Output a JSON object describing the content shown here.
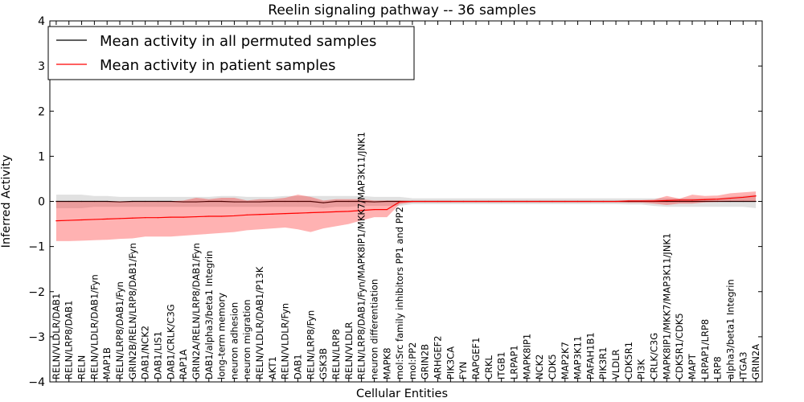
{
  "chart_data": {
    "type": "line",
    "title": "Reelin signaling pathway -- 36 samples",
    "xlabel": "Cellular Entities",
    "ylabel": "Inferred Activity",
    "ylim": [
      -4,
      4
    ],
    "yticks": [
      -4,
      -3,
      -2,
      -1,
      0,
      1,
      2,
      3,
      4
    ],
    "grid": false,
    "legend_position": "top-left",
    "categories": [
      "RELN/VLDLR/DAB1",
      "RELN/LRP8/DAB1",
      "RELN",
      "RELN/VLDLR/DAB1/Fyn",
      "MAP1B",
      "RELN/LRP8/DAB1/Fyn",
      "GRIN2B/RELN/LRP8/DAB1/Fyn",
      "DAB1/NCK2",
      "DAB1/LIS1",
      "DAB1/CRLK/C3G",
      "RAP1A",
      "GRIN2A/RELN/LRP8/DAB1/Fyn",
      "DAB1/alpha3/beta1 Integrin",
      "long-term memory",
      "neuron adhesion",
      "neuron migration",
      "RELN/VLDLR/DAB1/P13K",
      "AKT1",
      "RELN/VLDLR/Fyn",
      "DAB1",
      "RELN/LRP8/Fyn",
      "GSK3B",
      "RELN/LRP8",
      "RELN/VLDLR",
      "RELN/LRP8/DAB1/Fyn/MAPK8IP1/MKK7/MAP3K11/JNK1",
      "neuron differentiation",
      "MAPK8",
      "mol:Src family inhibitors PP1 and PP2",
      "mol:PP2",
      "GRIN2B",
      "ARHGEF2",
      "PIK3CA",
      "FYN",
      "RAPGEF1",
      "CRKL",
      "ITGB1",
      "LRPAP1",
      "MAPK8IP1",
      "NCK2",
      "CDK5",
      "MAP2K7",
      "MAP3K11",
      "PAFAH1B1",
      "PIK3R1",
      "VLDLR",
      "CDK5R1",
      "PI3K",
      "CRLK/C3G",
      "MAPK8IP1/MKK7/MAP3K11/JNK1",
      "CDK5R1/CDK5",
      "MAPT",
      "LRPAP1/LRP8",
      "LRP8",
      "alpha3/beta1 Integrin",
      "ITGA3",
      "GRIN2A"
    ],
    "series": [
      {
        "name": "Mean activity in all permuted samples",
        "color": "#000000",
        "values": [
          0,
          0,
          0,
          0,
          0,
          -0.01,
          0,
          0,
          0,
          0,
          -0.01,
          -0.01,
          0,
          0,
          -0.01,
          -0.01,
          -0.01,
          0,
          0,
          0,
          0,
          -0.03,
          0,
          0,
          0,
          -0.01,
          0,
          0,
          0,
          0,
          0,
          0,
          0,
          0,
          0,
          0,
          0,
          0,
          0,
          0,
          0,
          0,
          0,
          0,
          0,
          0,
          0,
          0,
          0,
          0,
          0,
          0,
          0,
          0,
          0,
          0
        ],
        "band_upper": [
          0.15,
          0.15,
          0.15,
          0.12,
          0.12,
          0.1,
          0.1,
          0.1,
          0.1,
          0.1,
          0.1,
          0.1,
          0.1,
          0.12,
          0.12,
          0.1,
          0.1,
          0.1,
          0.12,
          0.12,
          0.12,
          0.12,
          0.12,
          0.12,
          0.12,
          0.1,
          0.1,
          0.1,
          0.07,
          0.07,
          0.07,
          0.07,
          0.07,
          0.07,
          0.07,
          0.07,
          0.07,
          0.07,
          0.07,
          0.07,
          0.07,
          0.07,
          0.07,
          0.07,
          0.07,
          0.07,
          0.07,
          0.07,
          0.07,
          0.07,
          0.07,
          0.07,
          0.07,
          0.1,
          0.12,
          0.15
        ],
        "band_lower": [
          -0.15,
          -0.15,
          -0.15,
          -0.12,
          -0.12,
          -0.12,
          -0.12,
          -0.12,
          -0.12,
          -0.12,
          -0.12,
          -0.12,
          -0.12,
          -0.12,
          -0.12,
          -0.12,
          -0.12,
          -0.12,
          -0.12,
          -0.12,
          -0.12,
          -0.15,
          -0.12,
          -0.12,
          -0.1,
          -0.1,
          -0.1,
          -0.1,
          -0.06,
          -0.06,
          -0.06,
          -0.06,
          -0.06,
          -0.06,
          -0.06,
          -0.06,
          -0.06,
          -0.06,
          -0.06,
          -0.06,
          -0.06,
          -0.06,
          -0.06,
          -0.06,
          -0.06,
          -0.07,
          -0.07,
          -0.1,
          -0.12,
          -0.12,
          -0.12,
          -0.12,
          -0.12,
          -0.12,
          -0.12,
          -0.15
        ]
      },
      {
        "name": "Mean activity in patient samples",
        "color": "#ff0000",
        "values": [
          -0.43,
          -0.42,
          -0.41,
          -0.4,
          -0.39,
          -0.38,
          -0.37,
          -0.36,
          -0.36,
          -0.35,
          -0.35,
          -0.34,
          -0.33,
          -0.33,
          -0.32,
          -0.3,
          -0.29,
          -0.28,
          -0.27,
          -0.26,
          -0.25,
          -0.24,
          -0.23,
          -0.22,
          -0.2,
          -0.18,
          -0.18,
          -0.01,
          0,
          0,
          0,
          0,
          0,
          0,
          0,
          0,
          0,
          0,
          0,
          0,
          0,
          0,
          0,
          0,
          0,
          0.01,
          0.01,
          0.01,
          0.02,
          0.03,
          0.03,
          0.04,
          0.05,
          0.07,
          0.09,
          0.12
        ],
        "band_upper": [
          0,
          0,
          0,
          0,
          0,
          0,
          0,
          0,
          0,
          0,
          0.02,
          0.08,
          0.05,
          0.08,
          0.08,
          0.02,
          0.05,
          0.05,
          0.08,
          0.15,
          0.1,
          0.02,
          0.05,
          0.05,
          0.05,
          0.02,
          0.02,
          0.02,
          0.01,
          0.01,
          0.01,
          0.01,
          0.01,
          0.01,
          0.01,
          0.01,
          0.01,
          0.01,
          0.01,
          0.01,
          0.01,
          0.01,
          0.01,
          0.01,
          0.01,
          0.03,
          0.03,
          0.04,
          0.12,
          0.06,
          0.15,
          0.12,
          0.13,
          0.18,
          0.2,
          0.22
        ],
        "band_lower": [
          -0.88,
          -0.88,
          -0.87,
          -0.86,
          -0.85,
          -0.83,
          -0.82,
          -0.78,
          -0.78,
          -0.78,
          -0.76,
          -0.74,
          -0.72,
          -0.7,
          -0.68,
          -0.64,
          -0.62,
          -0.6,
          -0.58,
          -0.62,
          -0.68,
          -0.6,
          -0.55,
          -0.5,
          -0.42,
          -0.35,
          -0.35,
          -0.06,
          -0.02,
          -0.02,
          -0.02,
          -0.02,
          -0.02,
          -0.02,
          -0.02,
          -0.02,
          -0.02,
          -0.02,
          -0.02,
          -0.02,
          -0.02,
          -0.02,
          -0.02,
          -0.02,
          -0.02,
          -0.03,
          -0.03,
          -0.05,
          -0.08,
          -0.05,
          -0.05,
          -0.02,
          -0.01,
          0,
          0,
          0
        ]
      }
    ]
  }
}
